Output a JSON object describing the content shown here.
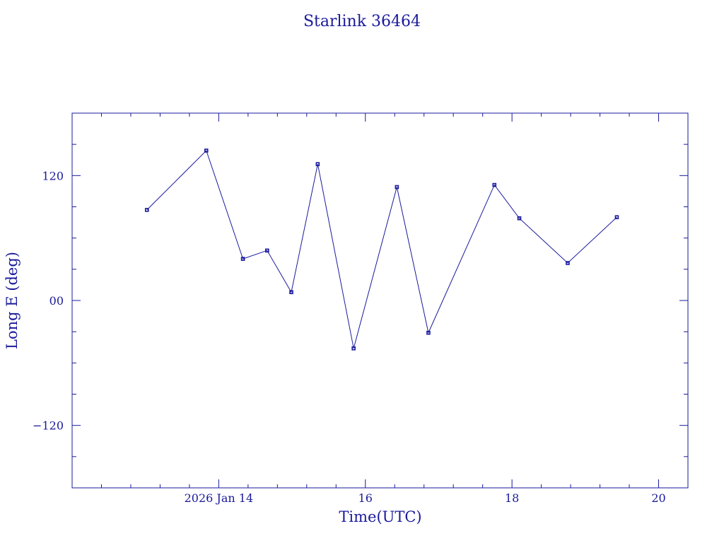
{
  "chart_data": {
    "type": "line",
    "title": "Starlink 36464",
    "xlabel": "Time(UTC)",
    "ylabel": "Long E (deg)",
    "x_unit": "days of January 2026 (UTC)",
    "xlim": [
      12.0,
      20.4
    ],
    "ylim": [
      -180,
      180
    ],
    "x_tick_labels": [
      {
        "x": 14,
        "label": "2026 Jan 14"
      },
      {
        "x": 16,
        "label": "16"
      },
      {
        "x": 18,
        "label": "18"
      },
      {
        "x": 20,
        "label": "20"
      }
    ],
    "y_tick_labels": [
      {
        "y": 120,
        "label": "120"
      },
      {
        "y": 0,
        "label": "00"
      },
      {
        "y": -120,
        "label": "−120"
      }
    ],
    "x_minor_ticks": [
      12.4,
      12.8,
      13.2,
      13.6,
      14.4,
      14.8,
      15.2,
      15.6,
      16.4,
      16.8,
      17.2,
      17.6,
      18.4,
      18.8,
      19.2,
      19.6
    ],
    "y_minor_ticks": [
      -150,
      -90,
      -60,
      -30,
      30,
      60,
      90,
      150
    ],
    "grid": false,
    "series": [
      {
        "x": [
          13.02,
          13.83,
          14.33,
          14.66,
          14.99,
          15.35,
          15.84,
          16.43,
          16.86,
          17.76,
          18.1,
          18.76,
          19.43
        ],
        "y": [
          87,
          144,
          40,
          48,
          8,
          131,
          -46,
          109,
          -31,
          111,
          79,
          36,
          80
        ]
      }
    ]
  }
}
